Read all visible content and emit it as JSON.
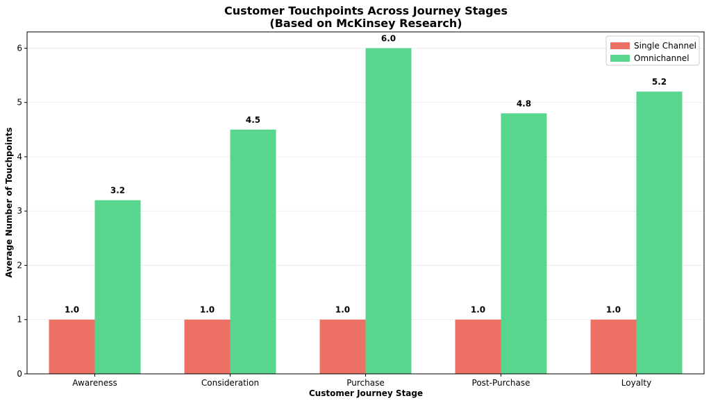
{
  "chart_data": {
    "type": "bar",
    "title": "Customer Touchpoints Across Journey Stages",
    "subtitle": "(Based on McKinsey Research)",
    "xlabel": "Customer Journey Stage",
    "ylabel": "Average Number of Touchpoints",
    "categories": [
      "Awareness",
      "Consideration",
      "Purchase",
      "Post-Purchase",
      "Loyalty"
    ],
    "series": [
      {
        "name": "Single Channel",
        "color": "#ec7063",
        "values": [
          1.0,
          1.0,
          1.0,
          1.0,
          1.0
        ]
      },
      {
        "name": "Omnichannel",
        "color": "#58d68d",
        "values": [
          3.2,
          4.5,
          6.0,
          4.8,
          5.2
        ]
      }
    ],
    "ylim": [
      0,
      6.3
    ],
    "yticks": [
      0,
      1,
      2,
      3,
      4,
      5,
      6
    ],
    "grid": "horizontal",
    "legend_position": "top-right",
    "data_labels": true
  }
}
